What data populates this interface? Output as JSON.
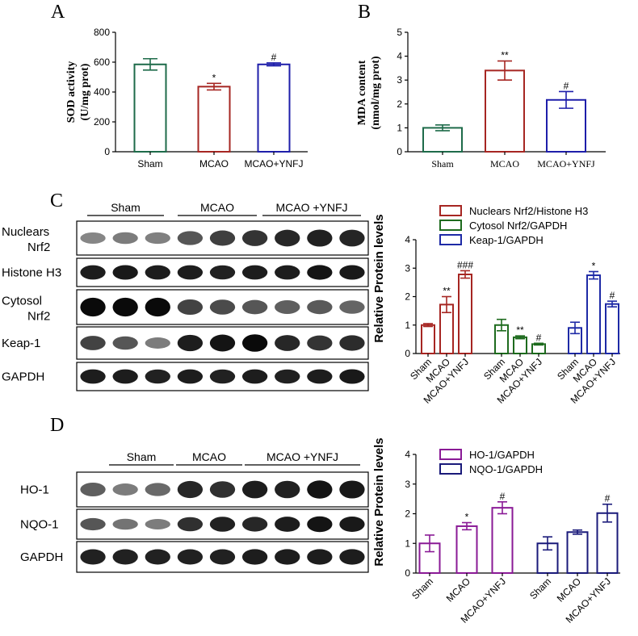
{
  "panels": {
    "A": {
      "letter": "A"
    },
    "B": {
      "letter": "B"
    },
    "C": {
      "letter": "C"
    },
    "D": {
      "letter": "D"
    }
  },
  "blot_c": {
    "groups": [
      "Sham",
      "MCAO",
      "MCAO +YNFJ"
    ],
    "rows": [
      "Nuclears\nNrf2",
      "Histone H3",
      "Cytosol\nNrf2",
      "Keap-1",
      "GAPDH"
    ],
    "intensities": [
      [
        0.35,
        0.4,
        0.38,
        0.6,
        0.72,
        0.78,
        0.85,
        0.88,
        0.86
      ],
      [
        0.9,
        0.92,
        0.9,
        0.9,
        0.88,
        0.9,
        0.9,
        0.94,
        0.92
      ],
      [
        1.0,
        1.0,
        1.0,
        0.7,
        0.66,
        0.6,
        0.55,
        0.58,
        0.52
      ],
      [
        0.7,
        0.6,
        0.4,
        0.9,
        0.95,
        1.0,
        0.85,
        0.78,
        0.82
      ],
      [
        0.9,
        0.9,
        0.88,
        0.9,
        0.88,
        0.9,
        0.88,
        0.9,
        0.92
      ]
    ]
  },
  "blot_d": {
    "groups": [
      "Sham",
      "MCAO",
      "MCAO +YNFJ"
    ],
    "rows": [
      "HO-1",
      "NQO-1",
      "GAPDH"
    ],
    "intensities": [
      [
        0.55,
        0.4,
        0.5,
        0.85,
        0.8,
        0.9,
        0.88,
        0.95,
        0.92
      ],
      [
        0.6,
        0.45,
        0.4,
        0.8,
        0.88,
        0.85,
        0.9,
        0.95,
        0.92
      ],
      [
        0.88,
        0.88,
        0.88,
        0.88,
        0.88,
        0.9,
        0.9,
        0.9,
        0.9
      ]
    ]
  },
  "chart_data": [
    {
      "id": "A",
      "type": "bar",
      "categories": [
        "Sham",
        "MCAO",
        "MCAO+YNFJ"
      ],
      "values": [
        585,
        436,
        585
      ],
      "errors": [
        38,
        22,
        10
      ],
      "colors": [
        "#1e6b4a",
        "#a62622",
        "#1e1eaa"
      ],
      "significance": [
        "",
        "*",
        "#"
      ],
      "ylabel": "SOD activity\n(U/mg prot)",
      "ylim": [
        0,
        800
      ],
      "yticks": [
        "0",
        "200",
        "400",
        "600",
        "800"
      ]
    },
    {
      "id": "B",
      "type": "bar",
      "categories": [
        "Sham",
        "MCAO",
        "MCAO+YNFJ"
      ],
      "values": [
        1.0,
        3.4,
        2.17
      ],
      "errors": [
        0.12,
        0.4,
        0.35
      ],
      "colors": [
        "#1e6b4a",
        "#a62622",
        "#1e1eaa"
      ],
      "significance": [
        "",
        "**",
        "#"
      ],
      "ylabel": "MDA content\n(nmol/mg prot)",
      "ylim": [
        0,
        5
      ],
      "yticks": [
        "0",
        "1",
        "2",
        "3",
        "4",
        "5"
      ]
    },
    {
      "id": "C",
      "type": "bar",
      "ylabel": "Relative  Protein levels",
      "ylim": [
        0,
        4
      ],
      "yticks": [
        "0",
        "1",
        "2",
        "3",
        "4"
      ],
      "series": [
        {
          "name": "Nuclears Nrf2/Histone H3",
          "color": "#a62622",
          "categories": [
            "Sham",
            "MCAO",
            "MCAO+YNFJ"
          ],
          "values": [
            1.0,
            1.72,
            2.78
          ],
          "errors": [
            0.05,
            0.28,
            0.13
          ],
          "significance": [
            "",
            "**",
            "###"
          ]
        },
        {
          "name": "Cytosol Nrf2/GAPDH",
          "color": "#1e6b1e",
          "categories": [
            "Sham",
            "MCAO",
            "MCAO+YNFJ"
          ],
          "values": [
            1.0,
            0.57,
            0.33
          ],
          "errors": [
            0.2,
            0.05,
            0.03
          ],
          "significance": [
            "",
            "**",
            "#"
          ]
        },
        {
          "name": "Keap-1/GAPDH",
          "color": "#1e2aa6",
          "categories": [
            "Sham",
            "MCAO",
            "MCAO+YNFJ"
          ],
          "values": [
            0.9,
            2.75,
            1.74
          ],
          "errors": [
            0.2,
            0.13,
            0.1
          ],
          "significance": [
            "",
            "*",
            "#"
          ]
        }
      ]
    },
    {
      "id": "D",
      "type": "bar",
      "ylabel": "Relative  Protein levels",
      "ylim": [
        0,
        4
      ],
      "yticks": [
        "0",
        "1",
        "2",
        "3",
        "4"
      ],
      "series": [
        {
          "name": "HO-1/GAPDH",
          "color": "#8a1a96",
          "categories": [
            "Sham",
            "MCAO",
            "MCAO+YNFJ"
          ],
          "values": [
            1.0,
            1.58,
            2.2
          ],
          "errors": [
            0.28,
            0.12,
            0.2
          ],
          "significance": [
            "",
            "*",
            "#"
          ]
        },
        {
          "name": "NQO-1/GAPDH",
          "color": "#1a1a7a",
          "categories": [
            "Sham",
            "MCAO",
            "MCAO+YNFJ"
          ],
          "values": [
            1.0,
            1.38,
            2.02
          ],
          "errors": [
            0.22,
            0.07,
            0.3
          ],
          "significance": [
            "",
            "",
            "#"
          ]
        }
      ]
    }
  ]
}
